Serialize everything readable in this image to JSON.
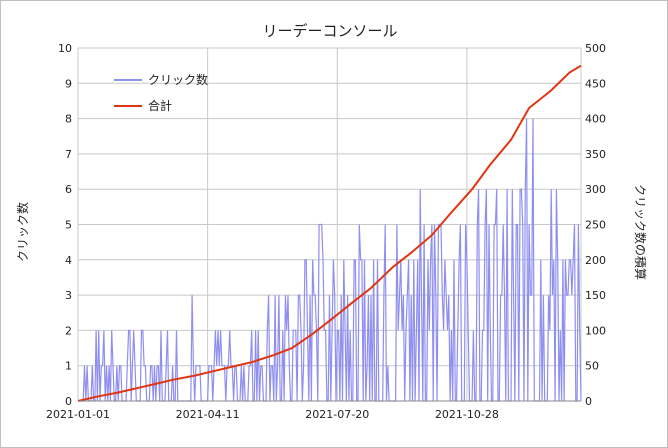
{
  "chart_data": {
    "type": "line",
    "title": "リーデーコンソール",
    "y_left_label": "クリック数",
    "y_right_label": "クリック数の積算",
    "y_left_range": [
      0,
      10
    ],
    "y_right_range": [
      0,
      500
    ],
    "y_left_ticks": [
      "0",
      "1",
      "2",
      "3",
      "4",
      "5",
      "6",
      "7",
      "8",
      "9",
      "10"
    ],
    "y_right_ticks": [
      "0",
      "50",
      "100",
      "150",
      "200",
      "250",
      "300",
      "350",
      "400",
      "450",
      "500"
    ],
    "x_ticks": [
      "2021-01-01",
      "2021-04-11",
      "2021-07-20",
      "2021-10-28"
    ],
    "x_range": [
      "2021-01-01",
      "2022-01-24"
    ],
    "grid": true,
    "legend_position": "top-left",
    "series": [
      {
        "name": "クリック数",
        "axis": "left",
        "color": "#8f8ff0",
        "points": [
          [
            "2021-01-01",
            0
          ],
          [
            "2021-01-10",
            1
          ],
          [
            "2021-01-20",
            1
          ],
          [
            "2021-02-01",
            1
          ],
          [
            "2021-02-10",
            1
          ],
          [
            "2021-02-20",
            1
          ],
          [
            "2021-03-01",
            1
          ],
          [
            "2021-03-15",
            1
          ],
          [
            "2021-04-01",
            1
          ],
          [
            "2021-04-15",
            1
          ],
          [
            "2021-05-01",
            1
          ],
          [
            "2021-05-15",
            1
          ],
          [
            "2021-06-01",
            2
          ],
          [
            "2021-06-15",
            2
          ],
          [
            "2021-07-01",
            3
          ],
          [
            "2021-07-15",
            3
          ],
          [
            "2021-08-01",
            3
          ],
          [
            "2021-08-15",
            3
          ],
          [
            "2021-09-01",
            3
          ],
          [
            "2021-09-15",
            3
          ],
          [
            "2021-10-01",
            4
          ],
          [
            "2021-10-15",
            3
          ],
          [
            "2021-11-01",
            4
          ],
          [
            "2021-11-15",
            4
          ],
          [
            "2021-12-01",
            4
          ],
          [
            "2021-12-15",
            5
          ],
          [
            "2022-01-01",
            4
          ],
          [
            "2022-01-15",
            3
          ],
          [
            "2022-01-24",
            3
          ]
        ],
        "peaks": [
          [
            "2021-01-21",
            2
          ],
          [
            "2021-01-27",
            2
          ],
          [
            "2021-02-10",
            2
          ],
          [
            "2021-03-15",
            1
          ],
          [
            "2021-03-30",
            3
          ],
          [
            "2021-05-20",
            2
          ],
          [
            "2021-06-05",
            3
          ],
          [
            "2021-06-22",
            2
          ],
          [
            "2021-06-26",
            4
          ],
          [
            "2021-07-08",
            5
          ],
          [
            "2021-07-14",
            3
          ],
          [
            "2021-08-10",
            4
          ],
          [
            "2021-08-20",
            4
          ],
          [
            "2021-09-04",
            5
          ],
          [
            "2021-09-22",
            6
          ],
          [
            "2021-10-08",
            5
          ],
          [
            "2021-10-28",
            4
          ],
          [
            "2021-11-06",
            6
          ],
          [
            "2021-11-25",
            5
          ],
          [
            "2021-12-12",
            6
          ],
          [
            "2021-12-18",
            8
          ],
          [
            "2022-01-05",
            6
          ],
          [
            "2022-01-16",
            4
          ]
        ]
      },
      {
        "name": "合計",
        "axis": "right",
        "color": "#e03510",
        "points": [
          [
            "2021-01-01",
            0
          ],
          [
            "2021-01-15",
            6
          ],
          [
            "2021-02-01",
            12
          ],
          [
            "2021-02-15",
            18
          ],
          [
            "2021-03-01",
            24
          ],
          [
            "2021-03-15",
            30
          ],
          [
            "2021-04-01",
            36
          ],
          [
            "2021-04-15",
            42
          ],
          [
            "2021-05-01",
            49
          ],
          [
            "2021-05-15",
            55
          ],
          [
            "2021-06-01",
            65
          ],
          [
            "2021-06-15",
            75
          ],
          [
            "2021-07-01",
            95
          ],
          [
            "2021-07-15",
            115
          ],
          [
            "2021-08-01",
            140
          ],
          [
            "2021-08-15",
            160
          ],
          [
            "2021-09-01",
            190
          ],
          [
            "2021-09-15",
            210
          ],
          [
            "2021-10-01",
            235
          ],
          [
            "2021-10-15",
            265
          ],
          [
            "2021-11-01",
            300
          ],
          [
            "2021-11-15",
            335
          ],
          [
            "2021-12-01",
            370
          ],
          [
            "2021-12-15",
            415
          ],
          [
            "2022-01-01",
            440
          ],
          [
            "2022-01-15",
            465
          ],
          [
            "2022-01-24",
            475
          ]
        ]
      }
    ]
  }
}
